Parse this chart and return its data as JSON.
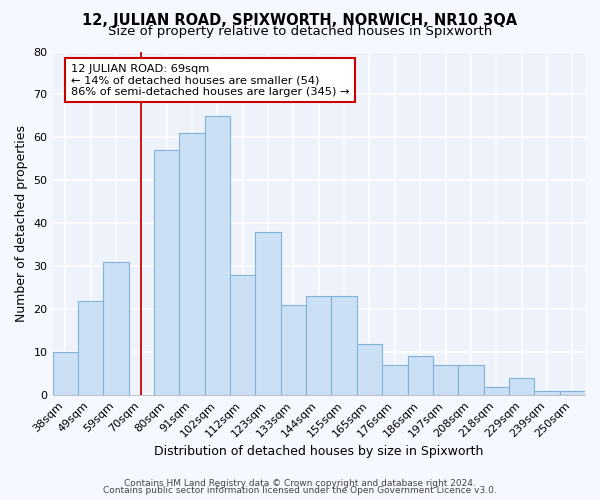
{
  "title": "12, JULIAN ROAD, SPIXWORTH, NORWICH, NR10 3QA",
  "subtitle": "Size of property relative to detached houses in Spixworth",
  "xlabel": "Distribution of detached houses by size in Spixworth",
  "ylabel": "Number of detached properties",
  "categories": [
    "38sqm",
    "49sqm",
    "59sqm",
    "70sqm",
    "80sqm",
    "91sqm",
    "102sqm",
    "112sqm",
    "123sqm",
    "133sqm",
    "144sqm",
    "155sqm",
    "165sqm",
    "176sqm",
    "186sqm",
    "197sqm",
    "208sqm",
    "218sqm",
    "229sqm",
    "239sqm",
    "250sqm"
  ],
  "values": [
    10,
    22,
    31,
    0,
    57,
    61,
    65,
    28,
    38,
    21,
    23,
    23,
    12,
    7,
    9,
    7,
    7,
    2,
    4,
    1,
    1
  ],
  "bar_color": "#cce0f5",
  "bar_edge_color": "#7fb3d9",
  "vline_color": "#cc0000",
  "annotation_text": "12 JULIAN ROAD: 69sqm\n← 14% of detached houses are smaller (54)\n86% of semi-detached houses are larger (345) →",
  "annotation_box_color": "white",
  "annotation_box_edge": "#cc0000",
  "ylim": [
    0,
    80
  ],
  "yticks": [
    0,
    10,
    20,
    30,
    40,
    50,
    60,
    70,
    80
  ],
  "footer_line1": "Contains HM Land Registry data © Crown copyright and database right 2024.",
  "footer_line2": "Contains public sector information licensed under the Open Government Licence v3.0.",
  "bg_color": "#f5f8ff",
  "plot_bg_color": "#eef3fb",
  "grid_color": "#ffffff",
  "title_fontsize": 10.5,
  "subtitle_fontsize": 9.5,
  "axis_label_fontsize": 9,
  "tick_fontsize": 8,
  "footer_fontsize": 6.5
}
